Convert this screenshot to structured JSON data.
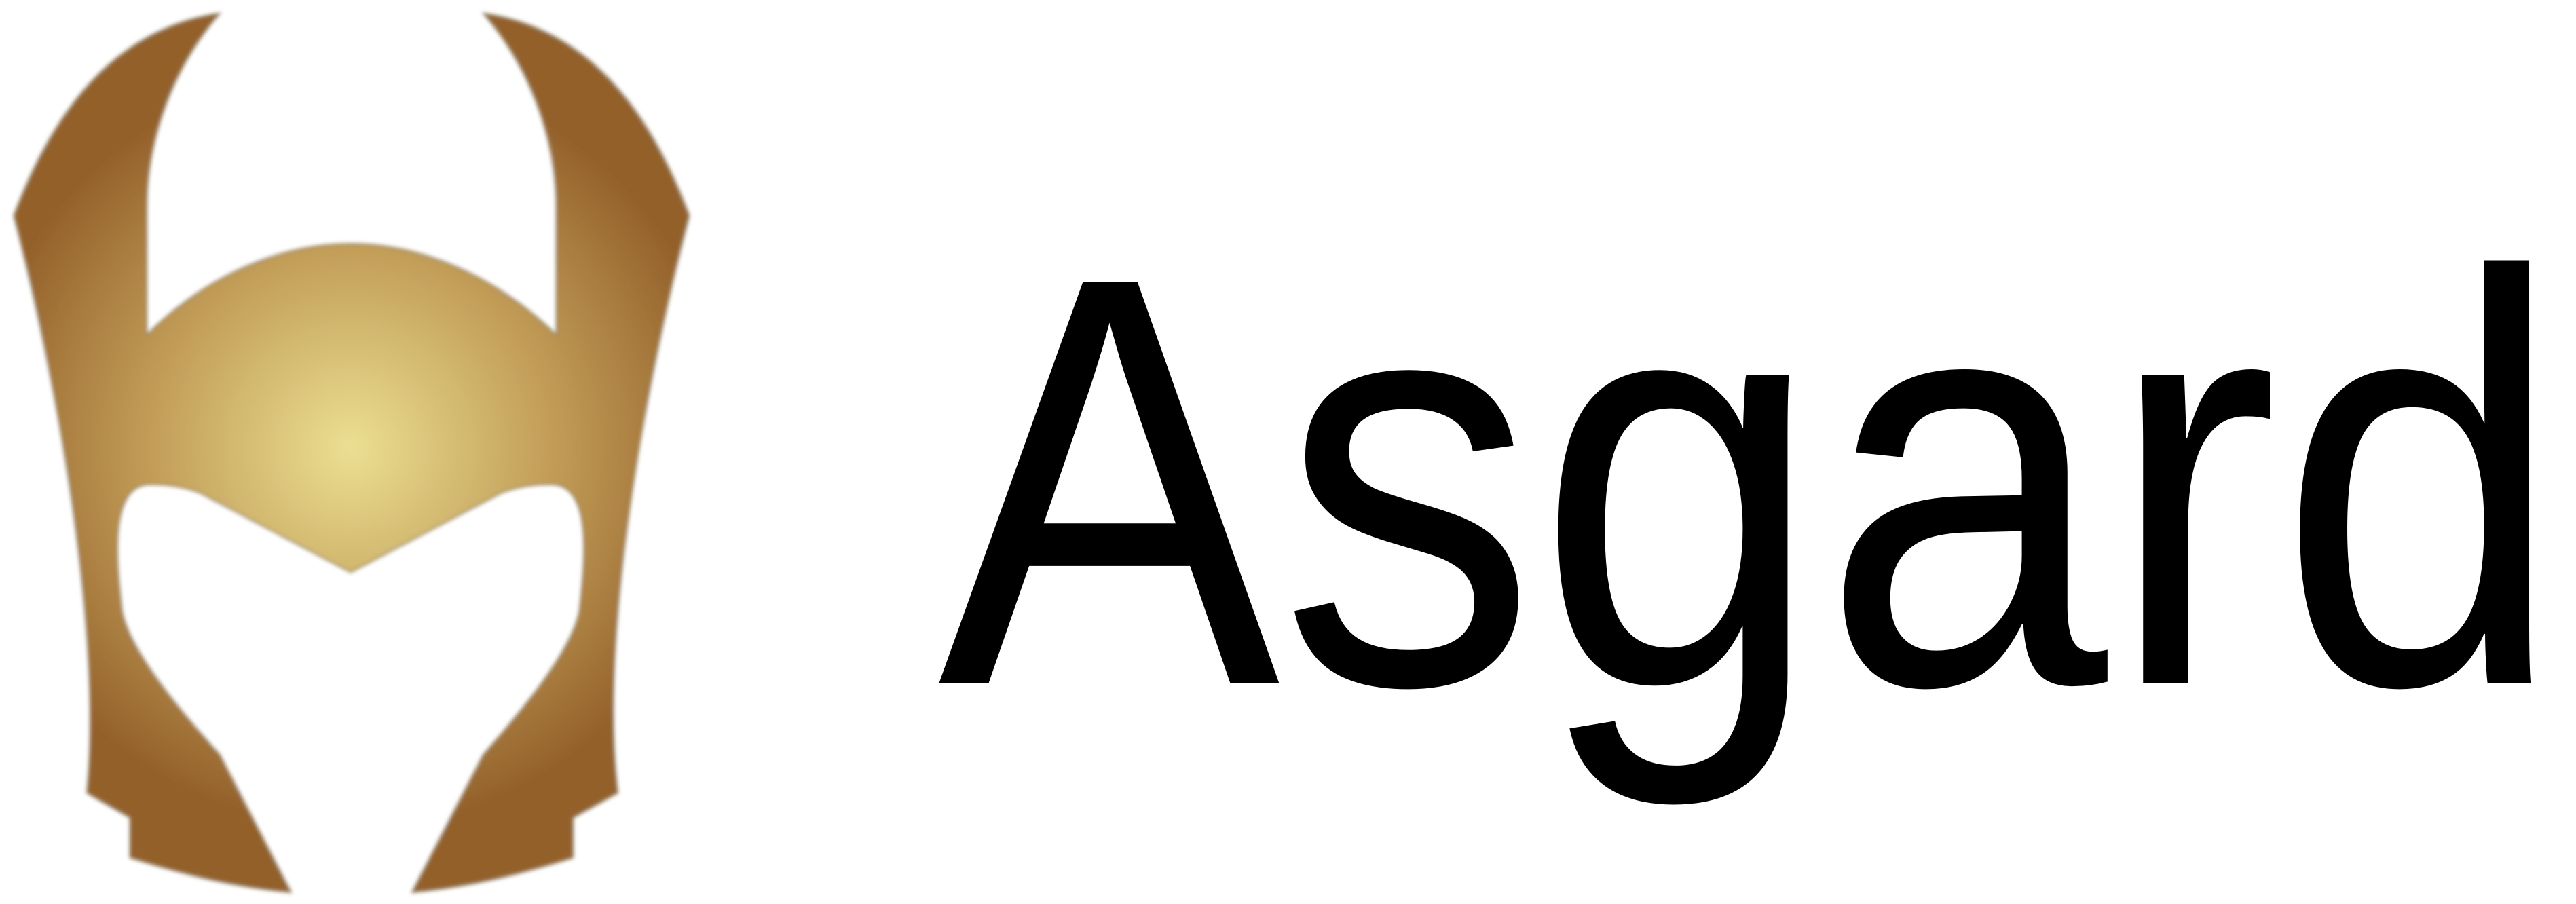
{
  "logo": {
    "text": "Asgard"
  }
}
